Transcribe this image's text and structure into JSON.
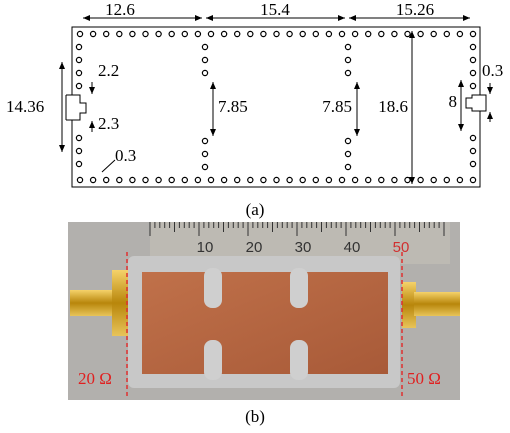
{
  "figure_a": {
    "dimensions": {
      "top_left": "12.6",
      "top_middle": "15.4",
      "top_right": "15.26",
      "left_slot_top": "2.2",
      "left_slot_bottom": "2.3",
      "left_height": "14.36",
      "via_diameter": "0.3",
      "left_via_gap": "7.85",
      "right_via_gap": "7.85",
      "inner_height": "18.6",
      "right_slot_width": "0.3",
      "right_slot_height": "8"
    },
    "caption": "(a)"
  },
  "figure_b": {
    "ruler_labels": [
      "10",
      "20",
      "30",
      "40",
      "50"
    ],
    "left_impedance": "20 Ω",
    "right_impedance": "50 Ω",
    "caption": "(b)"
  }
}
